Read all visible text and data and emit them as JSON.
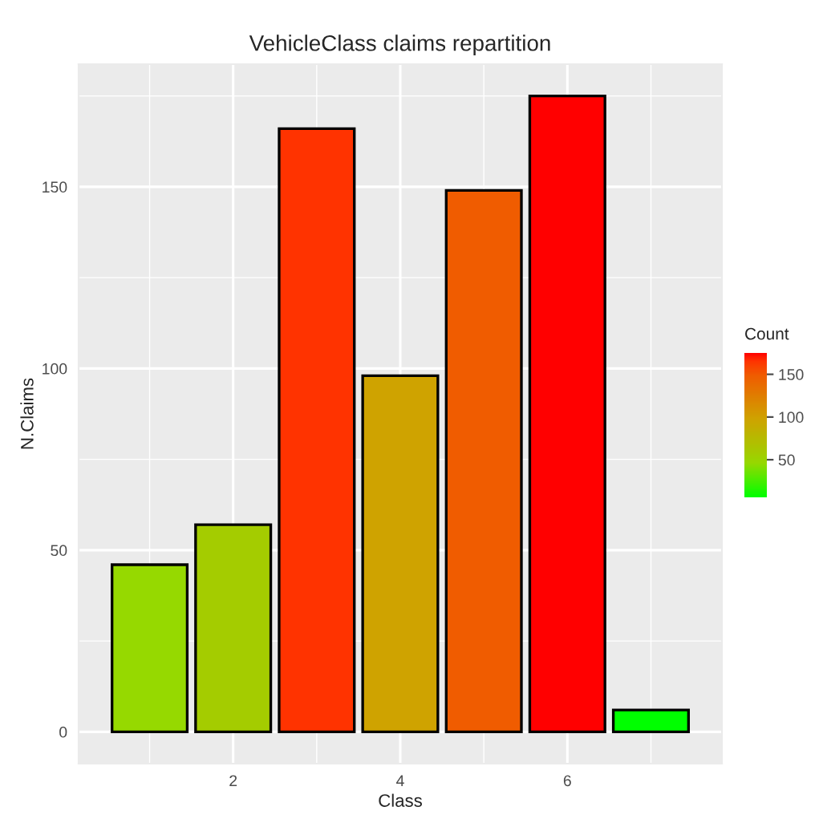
{
  "chart_data": {
    "type": "bar",
    "title": "VehicleClass claims repartition",
    "xlabel": "Class",
    "ylabel": "N.Claims",
    "clabel": "Count",
    "x": [
      1,
      2,
      3,
      4,
      5,
      6,
      7
    ],
    "values": [
      46,
      57,
      166,
      98,
      149,
      175,
      6
    ],
    "colors": [
      "#96d900",
      "#a4cc00",
      "#ff3300",
      "#cfa300",
      "#f05c00",
      "#ff0000",
      "#00ff00"
    ],
    "xlim": [
      0.15,
      7.85
    ],
    "xticks": [
      2,
      4,
      6
    ],
    "ylim": [
      -8.75,
      183.75
    ],
    "yticks": [
      0,
      50,
      100,
      150
    ],
    "clim": [
      6,
      175
    ],
    "cticks": [
      50,
      100,
      150
    ],
    "grid": true
  }
}
